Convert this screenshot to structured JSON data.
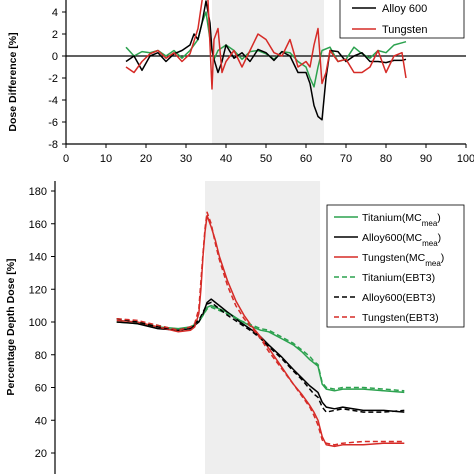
{
  "chart_data": [
    {
      "type": "line",
      "title": "",
      "xlabel": "",
      "ylabel": "Dose Difference [%]",
      "xlim": [
        0,
        100
      ],
      "ylim": [
        -8,
        6
      ],
      "xticks": [
        "0",
        "10",
        "20",
        "30",
        "40",
        "50",
        "60",
        "70",
        "80",
        "90",
        "100"
      ],
      "yticks": [
        "-8",
        "-6",
        "-4",
        "-2",
        "0",
        "2",
        "4"
      ],
      "shaded_region": [
        36.5,
        64.5
      ],
      "legend_position": "top-right",
      "series": [
        {
          "name": "Titanium",
          "show_in_legend": false,
          "color": "#2ca24f",
          "dashed": false,
          "x": [
            15,
            17,
            19,
            21,
            23,
            25,
            27,
            29,
            31,
            33,
            34,
            35,
            36,
            37,
            38,
            40,
            42,
            44,
            46,
            48,
            50,
            52,
            54,
            56,
            58,
            60,
            61,
            62,
            63,
            64,
            66,
            68,
            70,
            72,
            74,
            76,
            78,
            80,
            82,
            84,
            85
          ],
          "y": [
            0.8,
            0,
            0.4,
            0.3,
            0.5,
            0,
            0.5,
            -0.2,
            0.5,
            1.5,
            3,
            4,
            1.5,
            -0.3,
            0.5,
            1,
            0.5,
            -0.3,
            0.4,
            0.5,
            0.2,
            -0.3,
            0.4,
            0.3,
            -0.5,
            -1,
            -2,
            -2.8,
            -1,
            0.5,
            0.8,
            -0.5,
            -0.3,
            0.8,
            0.2,
            -0.2,
            0.5,
            0.3,
            1,
            1.2,
            1.3
          ]
        },
        {
          "name": "Alloy 600",
          "show_in_legend": true,
          "color": "#000000",
          "dashed": false,
          "x": [
            15,
            17,
            19,
            21,
            23,
            25,
            27,
            29,
            31,
            32,
            33,
            34,
            35,
            36,
            36.5,
            37,
            38,
            39,
            40,
            42,
            44,
            46,
            48,
            50,
            52,
            54,
            56,
            58,
            60,
            61,
            62,
            63,
            64,
            65,
            66,
            68,
            70,
            72,
            74,
            76,
            78,
            80,
            82,
            84,
            85
          ],
          "y": [
            -0.5,
            0,
            -1.3,
            0,
            0.3,
            -0.5,
            0.2,
            0.5,
            1,
            2,
            1.5,
            3,
            5,
            3,
            0.5,
            -0.3,
            -1.5,
            -0.5,
            1,
            -0.2,
            0.3,
            -0.5,
            0.6,
            0.3,
            -0.4,
            0.4,
            0,
            -1.5,
            -1.5,
            -2.5,
            -4.5,
            -5.5,
            -5.8,
            -2,
            0.5,
            0.4,
            -0.5,
            0,
            0.3,
            -0.5,
            -0.5,
            -0.6,
            -0.4,
            -0.4,
            -0.3
          ]
        },
        {
          "name": "Tungsten",
          "show_in_legend": true,
          "color": "#d62b27",
          "dashed": false,
          "x": [
            15,
            17,
            19,
            21,
            23,
            25,
            27,
            29,
            31,
            33,
            34,
            35,
            35.5,
            36,
            36.5,
            37,
            38,
            39,
            40,
            42,
            44,
            46,
            48,
            50,
            52,
            54,
            56,
            58,
            60,
            61,
            62,
            63,
            64,
            65,
            66,
            68,
            70,
            72,
            74,
            76,
            78,
            80,
            82,
            84,
            85
          ],
          "y": [
            -1,
            -1.5,
            -0.5,
            0.2,
            0.5,
            -0.2,
            0.3,
            -0.5,
            0.2,
            2.5,
            5,
            8,
            5,
            1,
            -3,
            1.5,
            2.5,
            -1.5,
            -0.5,
            0.5,
            -1,
            0.5,
            2,
            1.5,
            0.3,
            0,
            1.5,
            -1,
            -0.5,
            -1,
            1,
            2.5,
            -2.5,
            -1.5,
            0.5,
            -0.5,
            -0.3,
            -1.5,
            -1.5,
            -1,
            0.5,
            -1.5,
            0,
            0.3,
            -2
          ]
        }
      ]
    },
    {
      "type": "line",
      "title": "",
      "xlabel": "",
      "ylabel": "Percentage Depth Dose [%]",
      "xlim": [
        0,
        100
      ],
      "ylim": [
        20,
        180
      ],
      "yticks": [
        "20",
        "40",
        "60",
        "80",
        "100",
        "120",
        "140",
        "160",
        "180"
      ],
      "shaded_region": [
        36.5,
        64.5
      ],
      "legend_position": "top-right",
      "series": [
        {
          "name": "Titanium(MC<sub>mea</sub>)",
          "show_in_legend": true,
          "color": "#2ca24f",
          "dashed": false,
          "x": [
            15,
            20,
            25,
            30,
            33,
            35,
            36,
            37,
            38,
            40,
            42,
            45,
            48,
            50,
            52,
            55,
            58,
            60,
            62,
            63,
            64,
            65,
            66,
            68,
            70,
            75,
            80,
            85
          ],
          "y": [
            100,
            99,
            97,
            96,
            97,
            100,
            104,
            109,
            110,
            108,
            106,
            101,
            97,
            95,
            94,
            90,
            86,
            82,
            77,
            75,
            73,
            62,
            59,
            58,
            59,
            59,
            58,
            57
          ]
        },
        {
          "name": "Alloy600(MC<sub>mea</sub>)",
          "show_in_legend": true,
          "color": "#000000",
          "dashed": false,
          "x": [
            15,
            20,
            25,
            30,
            33,
            35,
            36,
            37,
            38,
            40,
            42,
            45,
            48,
            50,
            52,
            55,
            58,
            60,
            62,
            63,
            64,
            65,
            66,
            68,
            70,
            75,
            80,
            85
          ],
          "y": [
            100,
            99,
            96,
            95,
            96,
            100,
            105,
            112,
            114,
            110,
            106,
            100,
            95,
            91,
            86,
            79,
            71,
            66,
            61,
            59,
            57,
            51,
            48,
            47,
            48,
            46,
            46,
            45
          ]
        },
        {
          "name": "Tungsten(MC<sub>mea</sub>)",
          "show_in_legend": true,
          "color": "#d62b27",
          "dashed": false,
          "x": [
            15,
            20,
            25,
            30,
            33,
            34,
            35,
            35.5,
            36,
            36.5,
            37,
            38,
            39,
            40,
            42,
            44,
            46,
            48,
            50,
            52,
            55,
            58,
            60,
            62,
            63,
            64,
            65,
            66,
            68,
            70,
            75,
            80,
            85
          ],
          "y": [
            101,
            100,
            97,
            94,
            95,
            97,
            105,
            120,
            140,
            155,
            165,
            158,
            150,
            140,
            125,
            113,
            104,
            97,
            91,
            84,
            73,
            62,
            56,
            49,
            45,
            40,
            30,
            25,
            24,
            25,
            25,
            26,
            26
          ]
        },
        {
          "name": "Titanium(EBT3)",
          "show_in_legend": true,
          "color": "#2ca24f",
          "dashed": true,
          "x": [
            15,
            20,
            25,
            30,
            33,
            35,
            36,
            37,
            38,
            40,
            42,
            45,
            48,
            50,
            52,
            55,
            58,
            60,
            62,
            63,
            64,
            65,
            66,
            68,
            70,
            75,
            80,
            85
          ],
          "y": [
            102,
            100,
            98,
            95,
            97,
            101,
            104,
            108,
            109,
            107,
            105,
            101,
            98,
            96,
            95,
            91,
            87,
            83,
            79,
            76,
            74,
            63,
            60,
            59,
            60,
            60,
            59,
            58
          ]
        },
        {
          "name": "Alloy600(EBT3)",
          "show_in_legend": true,
          "color": "#000000",
          "dashed": true,
          "x": [
            15,
            20,
            25,
            30,
            33,
            35,
            36,
            37,
            38,
            40,
            42,
            45,
            48,
            50,
            52,
            55,
            58,
            60,
            62,
            63,
            64,
            65,
            66,
            68,
            70,
            75,
            80,
            85
          ],
          "y": [
            102,
            100,
            97,
            95,
            97,
            101,
            106,
            111,
            112,
            108,
            104,
            99,
            94,
            90,
            85,
            78,
            70,
            65,
            59,
            56,
            54,
            48,
            45,
            46,
            47,
            45,
            45,
            46
          ]
        },
        {
          "name": "Tungsten(EBT3)",
          "show_in_legend": true,
          "color": "#d62b27",
          "dashed": true,
          "x": [
            15,
            20,
            25,
            30,
            33,
            34,
            35,
            35.5,
            36,
            36.5,
            37,
            38,
            39,
            40,
            42,
            44,
            46,
            48,
            50,
            52,
            55,
            58,
            60,
            62,
            63,
            64,
            65,
            66,
            68,
            70,
            75,
            80,
            85
          ],
          "y": [
            102,
            101,
            98,
            95,
            97,
            99,
            108,
            125,
            142,
            157,
            167,
            160,
            148,
            138,
            122,
            110,
            102,
            96,
            90,
            82,
            72,
            62,
            55,
            48,
            43,
            37,
            28,
            26,
            25,
            26,
            27,
            27,
            27
          ]
        }
      ]
    }
  ]
}
